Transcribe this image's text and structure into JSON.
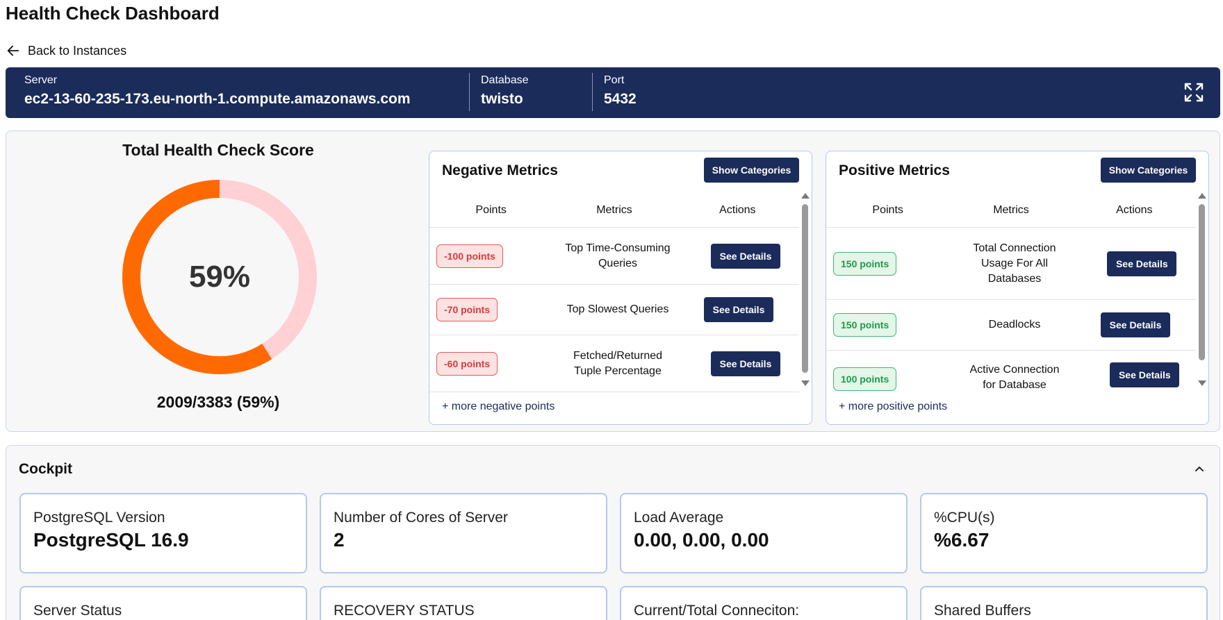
{
  "page": {
    "title": "Health Check Dashboard",
    "back_label": "Back to Instances"
  },
  "server": {
    "server_label": "Server",
    "server_value": "ec2-13-60-235-173.eu-north-1.compute.amazonaws.com",
    "database_label": "Database",
    "database_value": "twisto",
    "port_label": "Port",
    "port_value": "5432",
    "expand_icon": "expand-icon"
  },
  "score": {
    "title": "Total Health Check Score",
    "percent": 59,
    "percent_label": "59%",
    "summary": "2009/3383 (59%)",
    "colors": {
      "filled": "#ff6a00",
      "remaining": "#ffd0d4"
    }
  },
  "negative": {
    "title": "Negative Metrics",
    "show_categories": "Show Categories",
    "headers": [
      "Points",
      "Metrics",
      "Actions"
    ],
    "rows": [
      {
        "points": "-100 points",
        "metric": "Top Time-Consuming Queries",
        "action": "See Details"
      },
      {
        "points": "-70 points",
        "metric": "Top Slowest Queries",
        "action": "See Details"
      },
      {
        "points": "-60 points",
        "metric": "Fetched/Returned Tuple Percentage",
        "action": "See Details"
      }
    ],
    "more": "+ more negative points"
  },
  "positive": {
    "title": "Positive Metrics",
    "show_categories": "Show Categories",
    "headers": [
      "Points",
      "Metrics",
      "Actions"
    ],
    "rows": [
      {
        "points": "150 points",
        "metric": "Total Connection Usage For All Databases",
        "action": "See Details"
      },
      {
        "points": "150 points",
        "metric": "Deadlocks",
        "action": "See Details"
      },
      {
        "points": "100 points",
        "metric": "Active Connection for Database",
        "action": "See Details"
      }
    ],
    "more": "+ more positive points"
  },
  "cockpit": {
    "title": "Cockpit",
    "collapse_icon": "chevron-up-icon",
    "cards": [
      {
        "label": "PostgreSQL Version",
        "value": "PostgreSQL 16.9"
      },
      {
        "label": "Number of Cores of Server",
        "value": "2"
      },
      {
        "label": "Load Average",
        "value": "0.00, 0.00, 0.00"
      },
      {
        "label": "%CPU(s)",
        "value": "%6.67"
      },
      {
        "label": "Server Status",
        "value": ""
      },
      {
        "label": "RECOVERY STATUS",
        "value": ""
      },
      {
        "label": "Current/Total Conneciton:",
        "value": ""
      },
      {
        "label": "Shared Buffers",
        "value": ""
      }
    ]
  }
}
